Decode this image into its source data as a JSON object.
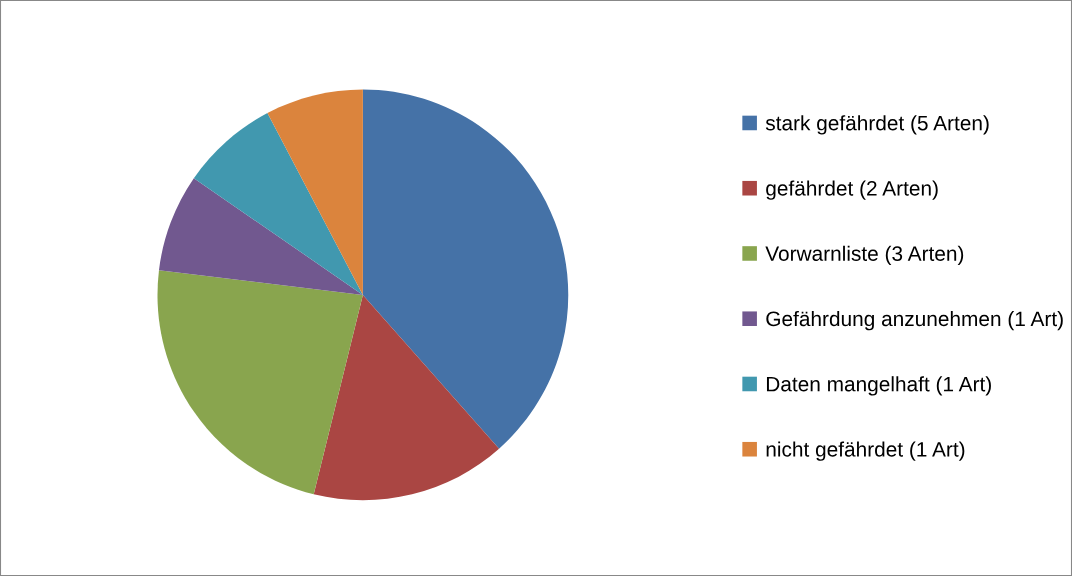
{
  "chart_data": {
    "type": "pie",
    "categories": [
      "stark gefährdet (5 Arten)",
      "gefährdet (2 Arten)",
      "Vorwarnliste (3 Arten)",
      "Gefährdung anzunehmen (1 Art)",
      "Daten mangelhaft (1 Art)",
      "nicht gefährdet (1 Art)"
    ],
    "values": [
      5,
      2,
      3,
      1,
      1,
      1
    ],
    "colors": [
      "#4572a7",
      "#aa4643",
      "#89a54e",
      "#71588f",
      "#4198af",
      "#db843d"
    ],
    "legend": "right"
  }
}
